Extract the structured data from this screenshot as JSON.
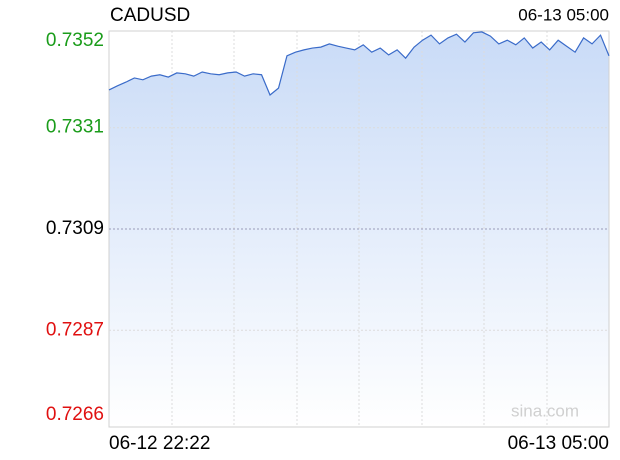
{
  "chart_data": {
    "type": "line",
    "title": "CADUSD",
    "timestamp": "06-13 05:00",
    "watermark": "sina.com",
    "categories": [
      "06-12 22:22",
      null,
      null,
      null,
      null,
      null,
      null,
      null,
      null,
      null,
      null,
      null,
      null,
      null,
      null,
      null,
      null,
      null,
      null,
      null,
      null,
      null,
      null,
      null,
      null,
      null,
      null,
      null,
      null,
      null,
      null,
      null,
      null,
      null,
      null,
      null,
      null,
      null,
      null,
      null,
      null,
      null,
      null,
      null,
      null,
      null,
      null,
      null,
      null,
      null,
      null,
      null,
      null,
      null,
      null,
      null,
      null,
      null,
      null,
      "06-13 05:00"
    ],
    "values": [
      0.73392,
      0.73401,
      0.73409,
      0.73418,
      0.73414,
      0.73422,
      0.73425,
      0.7342,
      0.73429,
      0.73427,
      0.73422,
      0.73431,
      0.73427,
      0.73425,
      0.73429,
      0.73431,
      0.73422,
      0.73427,
      0.73425,
      0.73381,
      0.73396,
      0.73466,
      0.73474,
      0.73479,
      0.73483,
      0.73485,
      0.73492,
      0.73487,
      0.73483,
      0.73479,
      0.7349,
      0.73474,
      0.73483,
      0.73468,
      0.73479,
      0.73461,
      0.73485,
      0.735,
      0.73511,
      0.73492,
      0.73505,
      0.73513,
      0.73496,
      0.73516,
      0.73518,
      0.73509,
      0.73492,
      0.735,
      0.7349,
      0.73505,
      0.73483,
      0.73496,
      0.73479,
      0.735,
      0.73487,
      0.73474,
      0.73505,
      0.73492,
      0.73511,
      0.73466
    ],
    "color": "#3a6bc9",
    "ylim": [
      0.7266,
      0.7352
    ],
    "yticks": [
      0.7352,
      0.7331,
      0.7309,
      0.7287,
      0.7266
    ],
    "ytick_colors": [
      "#1a9c1a",
      "#1a9c1a",
      "#000000",
      "#e01010",
      "#e01010"
    ],
    "grid": true
  }
}
